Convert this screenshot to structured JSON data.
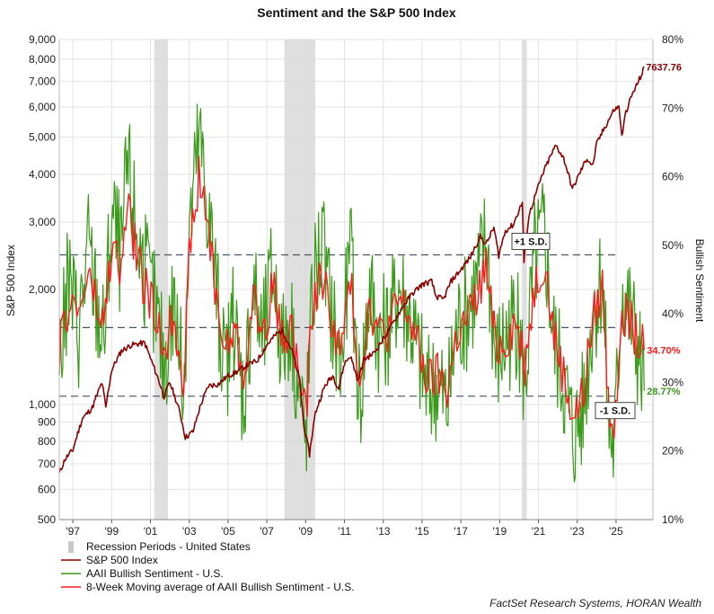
{
  "chart_data": {
    "type": "line",
    "title": "Sentiment and the S&P 500 Index",
    "y_left_label": "S&P 500 Index",
    "y_right_label": "Bullish Sentiment",
    "y_left_scale": "log",
    "y_left_range": [
      500,
      9000
    ],
    "y_left_ticks": [
      "500",
      "600",
      "700",
      "800",
      "900",
      "1,000",
      "2,000",
      "3,000",
      "4,000",
      "5,000",
      "6,000",
      "7,000",
      "8,000",
      "9,000"
    ],
    "y_left_tick_values": [
      500,
      600,
      700,
      800,
      900,
      1000,
      2000,
      3000,
      4000,
      5000,
      6000,
      7000,
      8000,
      9000
    ],
    "y_right_range": [
      10,
      80
    ],
    "y_right_ticks": [
      "10%",
      "20%",
      "30%",
      "40%",
      "50%",
      "60%",
      "70%",
      "80%"
    ],
    "y_right_tick_values": [
      10,
      20,
      30,
      40,
      50,
      60,
      70,
      80
    ],
    "x_range": [
      1996.3,
      2026.9
    ],
    "x_ticks": [
      "'97",
      "'99",
      "'01",
      "'03",
      "'05",
      "'07",
      "'09",
      "'11",
      "'13",
      "'15",
      "'17",
      "'19",
      "'21",
      "'23",
      "'25"
    ],
    "x_tick_values": [
      1997,
      1999,
      2001,
      2003,
      2005,
      2007,
      2009,
      2011,
      2013,
      2015,
      2017,
      2019,
      2021,
      2023,
      2025
    ],
    "grid": true,
    "legend_placement": "bottom-left",
    "recessions": [
      [
        2001.2,
        2001.9
      ],
      [
        2007.9,
        2009.5
      ],
      [
        2020.15,
        2020.4
      ]
    ],
    "reference_lines": [
      {
        "label": "+1 S.D.",
        "value": 48.6
      },
      {
        "label": "",
        "value": 38.0
      },
      {
        "label": "-1 S.D.",
        "value": 28.0
      }
    ],
    "end_labels": {
      "sp500": "7637.76",
      "ma8": "34.70%",
      "bullish": "28.77%"
    },
    "series": [
      {
        "name": "S&P 500 Index",
        "color": "#8b0000",
        "axis": "left",
        "x": [
          1996.3,
          1996.6,
          1997.0,
          1997.5,
          1998.0,
          1998.5,
          1998.7,
          1999.0,
          1999.5,
          2000.0,
          2000.7,
          2001.0,
          2001.7,
          2002.0,
          2002.5,
          2002.8,
          2003.2,
          2003.6,
          2004.0,
          2004.5,
          2005.0,
          2005.5,
          2006.0,
          2006.5,
          2007.0,
          2007.5,
          2007.8,
          2008.3,
          2008.7,
          2008.9,
          2009.2,
          2009.5,
          2010.0,
          2010.4,
          2010.7,
          2011.0,
          2011.3,
          2011.7,
          2012.0,
          2012.5,
          2013.0,
          2013.5,
          2014.0,
          2014.5,
          2015.0,
          2015.5,
          2015.7,
          2016.1,
          2016.5,
          2017.0,
          2017.5,
          2018.0,
          2018.3,
          2018.7,
          2018.95,
          2019.3,
          2019.7,
          2020.0,
          2020.17,
          2020.25,
          2020.5,
          2020.9,
          2021.3,
          2021.9,
          2022.3,
          2022.75,
          2023.0,
          2023.5,
          2023.8,
          2024.0,
          2024.5,
          2024.9,
          2025.15,
          2025.3,
          2025.5,
          2025.8,
          2026.1,
          2026.35,
          2026.45
        ],
        "values": [
          660,
          720,
          760,
          920,
          980,
          1140,
          980,
          1230,
          1380,
          1430,
          1450,
          1320,
          1050,
          1140,
          960,
          820,
          850,
          1000,
          1120,
          1130,
          1190,
          1220,
          1270,
          1300,
          1430,
          1530,
          1560,
          1380,
          1150,
          880,
          740,
          950,
          1120,
          1190,
          1100,
          1280,
          1340,
          1150,
          1310,
          1360,
          1480,
          1630,
          1800,
          1950,
          2060,
          2100,
          1920,
          1880,
          2100,
          2250,
          2430,
          2750,
          2620,
          2900,
          2450,
          2850,
          2950,
          3220,
          3380,
          2350,
          3100,
          3600,
          4100,
          4760,
          4400,
          3650,
          3900,
          4400,
          4200,
          4800,
          5400,
          5900,
          6000,
          5000,
          5800,
          6400,
          6900,
          7350,
          7637.76
        ]
      },
      {
        "name": "AAII Bullish Sentiment - U.S.",
        "color": "#3a9a1a",
        "axis": "right",
        "x": [
          1996.3,
          1996.8,
          1997.3,
          1997.8,
          1998.2,
          1998.6,
          1999.0,
          1999.5,
          1999.8,
          2000.2,
          2000.7,
          2001.2,
          2001.7,
          2002.2,
          2002.7,
          2003.0,
          2003.5,
          2004.0,
          2004.4,
          2004.8,
          2005.3,
          2005.8,
          2006.3,
          2006.8,
          2007.3,
          2007.8,
          2008.2,
          2008.6,
          2009.0,
          2009.4,
          2009.8,
          2010.3,
          2010.8,
          2011.3,
          2011.8,
          2012.3,
          2012.8,
          2013.3,
          2013.8,
          2014.3,
          2014.8,
          2015.3,
          2015.8,
          2016.3,
          2016.8,
          2017.3,
          2017.8,
          2018.3,
          2018.8,
          2019.3,
          2019.8,
          2020.3,
          2020.8,
          2021.3,
          2021.8,
          2022.3,
          2022.8,
          2023.3,
          2023.8,
          2024.3,
          2024.6,
          2024.9,
          2025.3,
          2025.7,
          2026.1,
          2026.45
        ],
        "values": [
          33,
          45,
          38,
          50,
          42,
          36,
          55,
          48,
          62,
          54,
          46,
          41,
          33,
          42,
          29,
          52,
          66,
          55,
          44,
          31,
          39,
          28,
          44,
          36,
          47,
          35,
          40,
          30,
          22,
          45,
          50,
          41,
          32,
          49,
          27,
          44,
          36,
          38,
          44,
          40,
          34,
          28,
          30,
          26,
          38,
          40,
          44,
          51,
          33,
          36,
          40,
          30,
          48,
          52,
          36,
          30,
          22,
          26,
          40,
          46,
          24,
          20,
          44,
          40,
          35,
          28.77
        ]
      },
      {
        "name": "8-Week Moving average of AAII Bullish Sentiment - U.S.",
        "color": "#ff1a1a",
        "axis": "right",
        "x": [
          1996.3,
          1996.8,
          1997.3,
          1997.8,
          1998.2,
          1998.6,
          1999.0,
          1999.5,
          1999.8,
          2000.2,
          2000.7,
          2001.2,
          2001.7,
          2002.2,
          2002.7,
          2003.0,
          2003.5,
          2004.0,
          2004.4,
          2004.8,
          2005.3,
          2005.8,
          2006.3,
          2006.8,
          2007.3,
          2007.8,
          2008.2,
          2008.6,
          2009.0,
          2009.4,
          2009.8,
          2010.3,
          2010.8,
          2011.3,
          2011.8,
          2012.3,
          2012.8,
          2013.3,
          2013.8,
          2014.3,
          2014.8,
          2015.3,
          2015.8,
          2016.3,
          2016.8,
          2017.3,
          2017.8,
          2018.3,
          2018.8,
          2019.3,
          2019.8,
          2020.3,
          2020.8,
          2021.3,
          2021.8,
          2022.3,
          2022.8,
          2023.3,
          2023.8,
          2024.3,
          2024.6,
          2024.9,
          2025.3,
          2025.7,
          2026.1,
          2026.45
        ],
        "values": [
          34,
          42,
          40,
          46,
          41,
          38,
          50,
          46,
          56,
          50,
          44,
          40,
          35,
          40,
          31,
          48,
          60,
          52,
          43,
          34,
          38,
          31,
          42,
          37,
          44,
          36,
          39,
          32,
          25,
          42,
          46,
          40,
          34,
          45,
          30,
          42,
          37,
          38,
          42,
          40,
          35,
          30,
          31,
          29,
          37,
          39,
          42,
          47,
          35,
          36,
          39,
          33,
          44,
          48,
          37,
          31,
          25,
          28,
          39,
          44,
          27,
          24,
          41,
          39,
          36,
          34.7
        ]
      }
    ]
  },
  "legend": [
    {
      "name": "Recession Periods - United States",
      "color": "#c8c8c8",
      "kind": "bar"
    },
    {
      "name": "S&P 500 Index",
      "color": "#8b0000",
      "kind": "line"
    },
    {
      "name": "AAII Bullish Sentiment - U.S.",
      "color": "#3a9a1a",
      "kind": "line"
    },
    {
      "name": "8-Week Moving average of AAII Bullish Sentiment - U.S.",
      "color": "#ff1a1a",
      "kind": "line"
    }
  ],
  "source": "FactSet Research Systems, HORAN Wealth"
}
